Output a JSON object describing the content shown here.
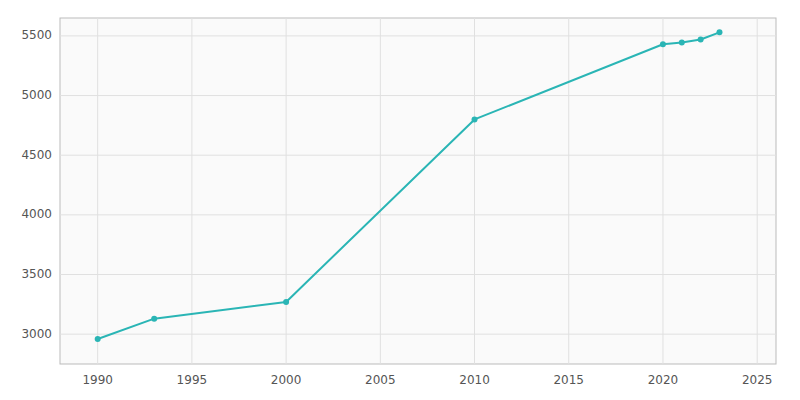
{
  "chart_data": {
    "type": "line",
    "x": [
      1990,
      1993,
      2000,
      2010,
      2020,
      2021,
      2022,
      2023
    ],
    "values": [
      2960,
      3130,
      3270,
      4800,
      5430,
      5445,
      5470,
      5530
    ],
    "color": "#2ab5b5",
    "marker": "circle",
    "xlim": [
      1988,
      2026
    ],
    "ylim": [
      2750,
      5650
    ],
    "xticks": [
      1990,
      1995,
      2000,
      2005,
      2010,
      2015,
      2020,
      2025
    ],
    "yticks": [
      3000,
      3500,
      4000,
      4500,
      5000,
      5500
    ],
    "grid": true
  }
}
